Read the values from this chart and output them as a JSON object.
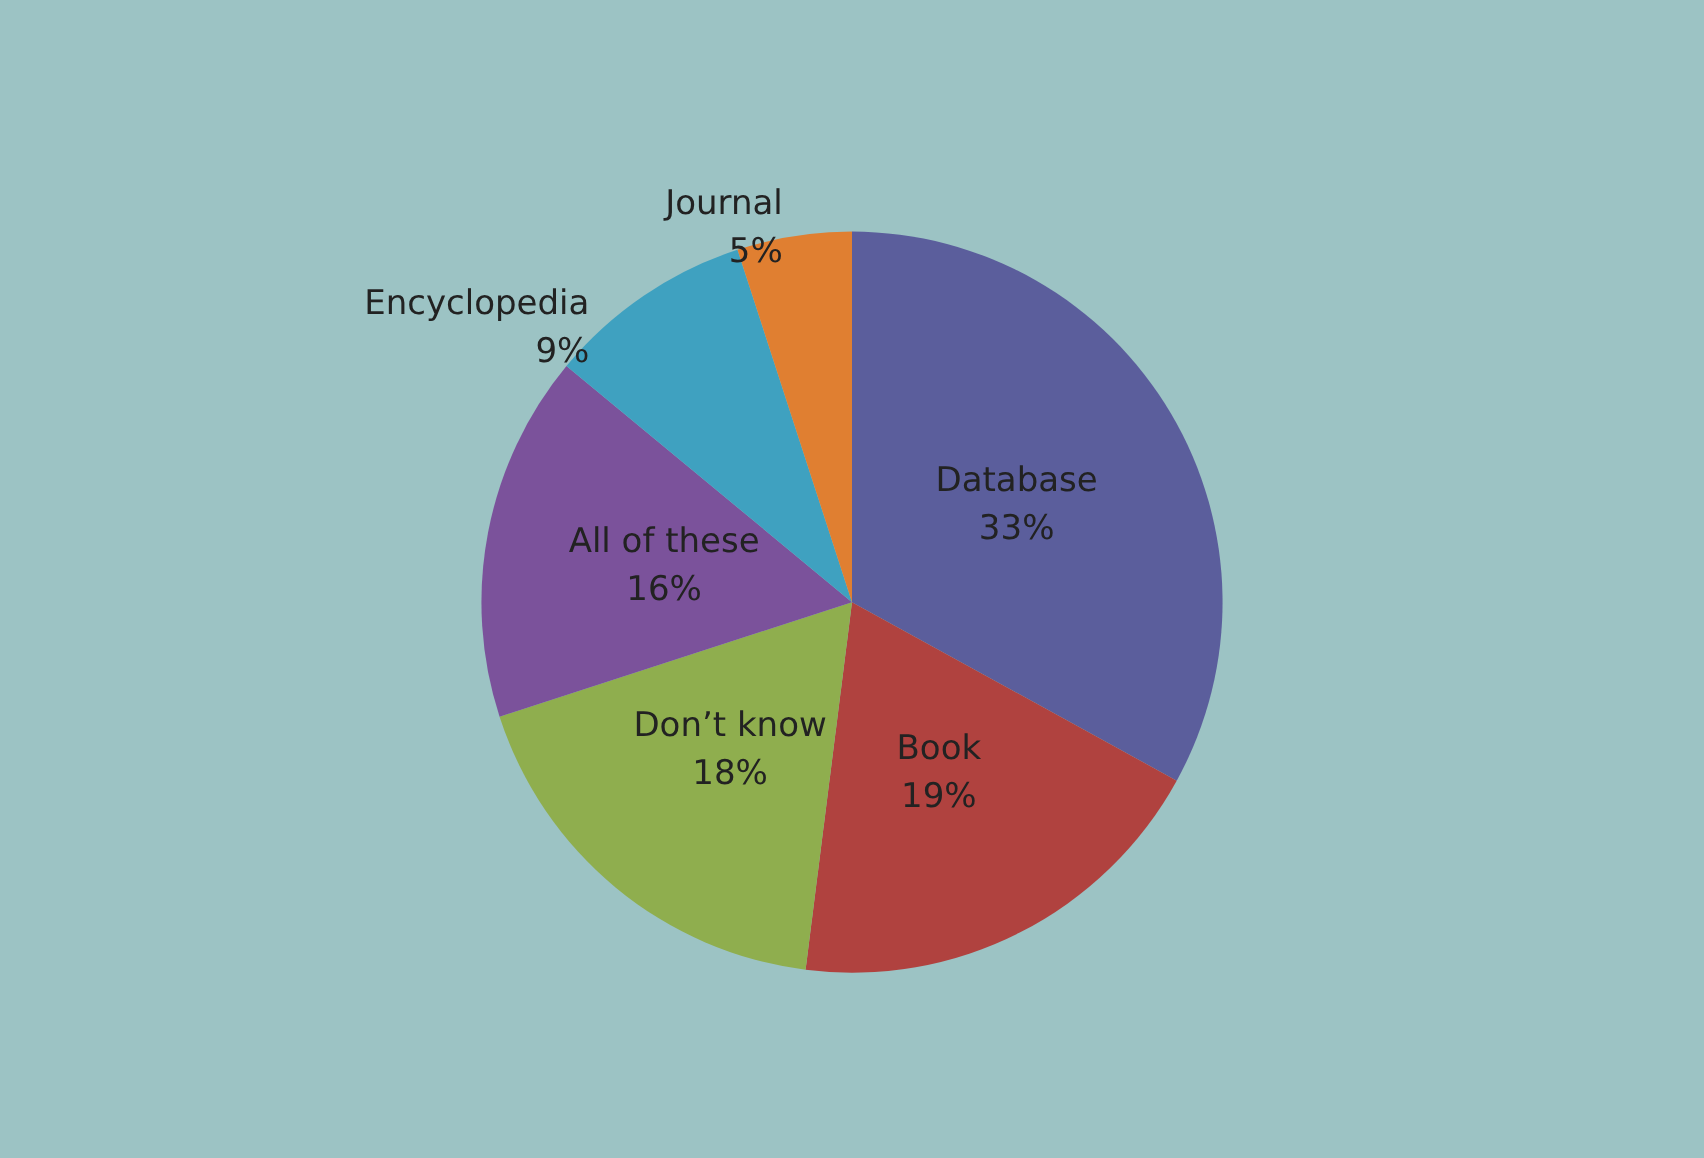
{
  "chart_data": {
    "type": "pie",
    "categories": [
      "Database",
      "Book",
      "Don’t know",
      "All of these",
      "Encyclopedia",
      "Journal"
    ],
    "values": [
      33,
      19,
      18,
      16,
      9,
      5
    ],
    "value_labels": [
      "33%",
      "19%",
      "18%",
      "16%",
      "9%",
      "5%"
    ],
    "colors": [
      "#5b5e9c",
      "#b0423f",
      "#8fae4e",
      "#7b529b",
      "#3fa1c0",
      "#e07f31"
    ],
    "legend": false
  }
}
